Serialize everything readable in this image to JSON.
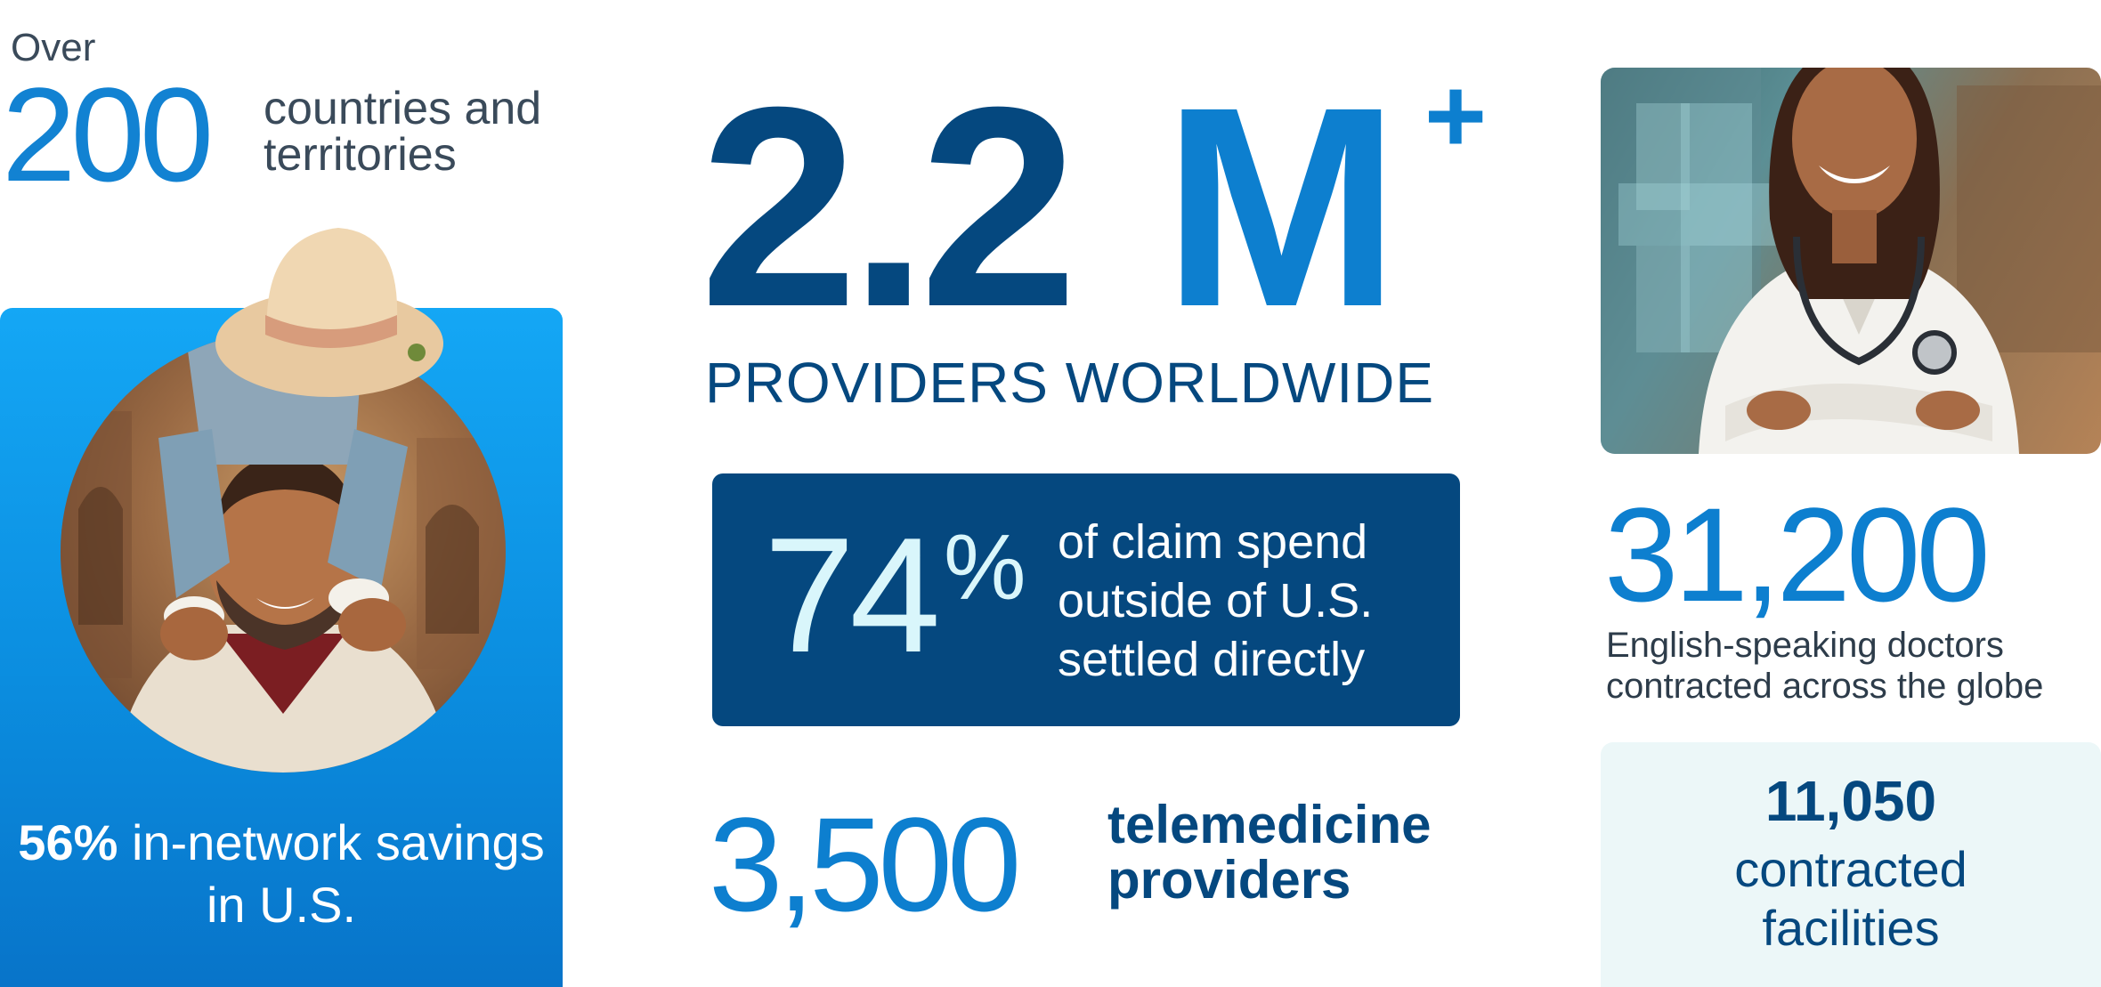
{
  "countries": {
    "prefix": "Over",
    "number": "200",
    "label": "countries and territories"
  },
  "savings": {
    "value": "56%",
    "text": "in-network savings in U.S."
  },
  "providers": {
    "number": "2.2",
    "unit": "M",
    "plus": "+",
    "label": "PROVIDERS WORLDWIDE"
  },
  "claims": {
    "number": "74",
    "percent": "%",
    "text": "of claim spend outside of U.S. settled directly"
  },
  "telemedicine": {
    "number": "3,500",
    "label_line1": "telemedicine",
    "label_line2": "providers"
  },
  "doctors": {
    "number": "31,200",
    "line1": "English-speaking doctors",
    "line2": "contracted across the globe"
  },
  "facilities": {
    "number": "11,050",
    "line1": "contracted",
    "line2": "facilities"
  },
  "colors": {
    "navy": "#05487f",
    "blue": "#0d7fcf",
    "sky": "#14a7f5",
    "pale": "#ecf7f8"
  }
}
